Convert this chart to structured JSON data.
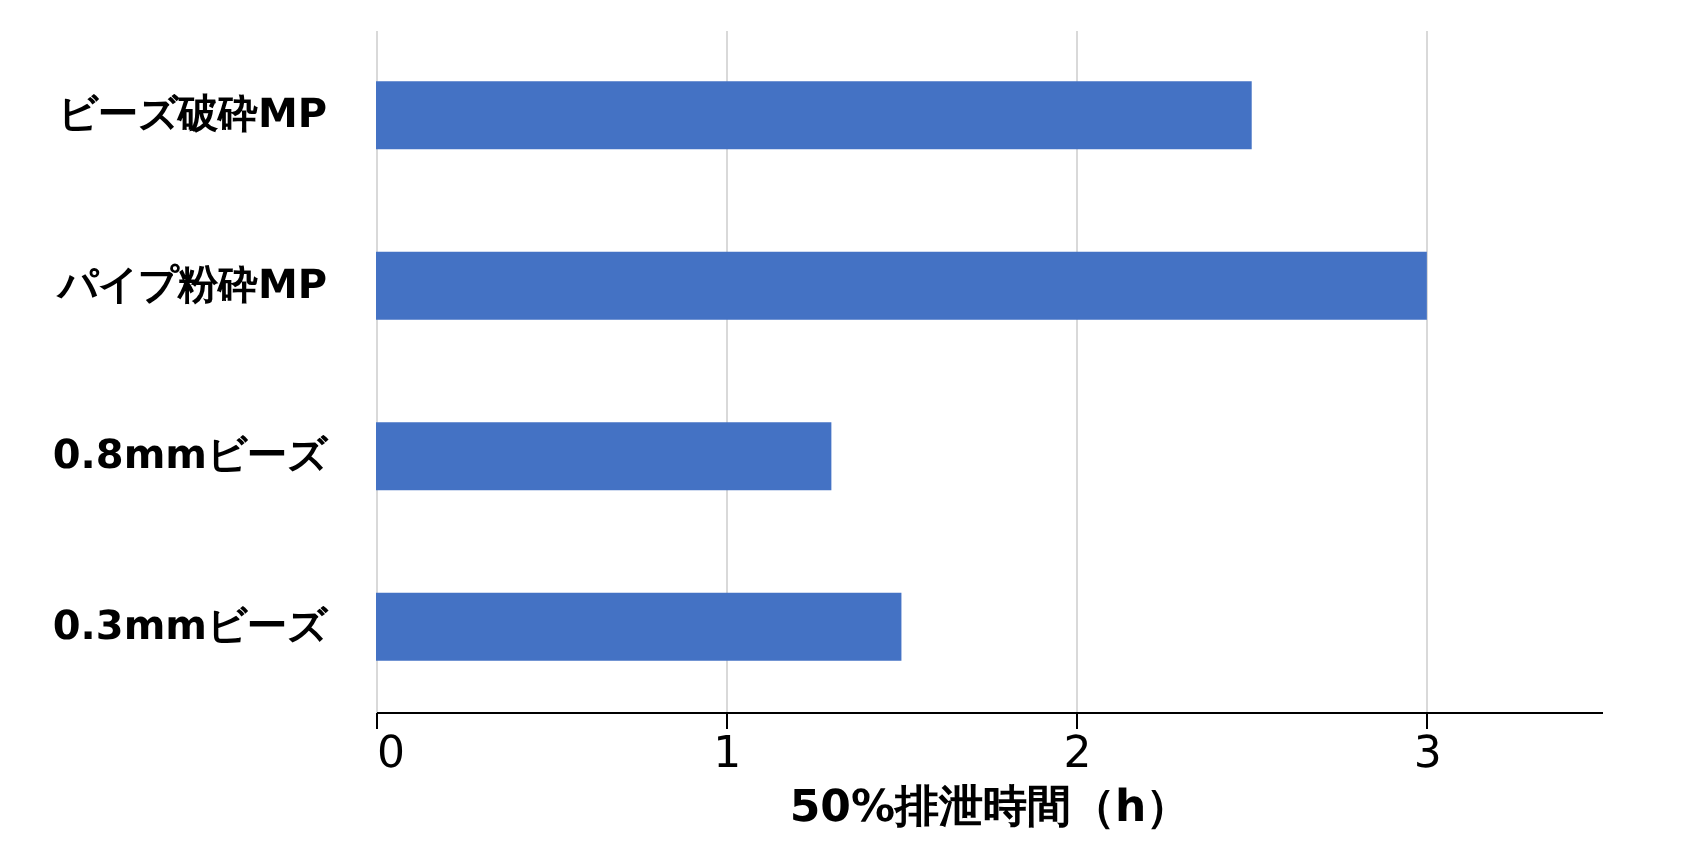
{
  "chart_data": {
    "type": "bar",
    "orientation": "horizontal",
    "categories": [
      "ビーズ破砕MP",
      "パイプ粉砕MP",
      "0.8mmビーズ",
      "0.3mmビーズ"
    ],
    "values": [
      2.5,
      3.0,
      1.3,
      1.5
    ],
    "color": "#4472c4",
    "xlabel": "50%排泄時間（h）",
    "xlim": [
      0,
      3.5
    ],
    "xticks": [
      0,
      1,
      2,
      3
    ],
    "grid": "x"
  }
}
